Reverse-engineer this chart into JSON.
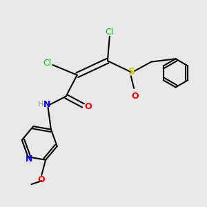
{
  "bg_color": "#e8e8e8",
  "bond_color": "#000000",
  "bond_width": 1.5,
  "atom_colors": {
    "Cl": "#00cc00",
    "S": "#cccc00",
    "O_sulfinyl": "#ff0000",
    "O_carbonyl": "#ff0000",
    "N": "#0000ff",
    "H": "#888888",
    "C": "#000000",
    "O_methoxy": "#ff0000"
  },
  "figsize": [
    3.0,
    3.0
  ],
  "dpi": 100,
  "xlim": [
    0,
    10
  ],
  "ylim": [
    0,
    10
  ]
}
